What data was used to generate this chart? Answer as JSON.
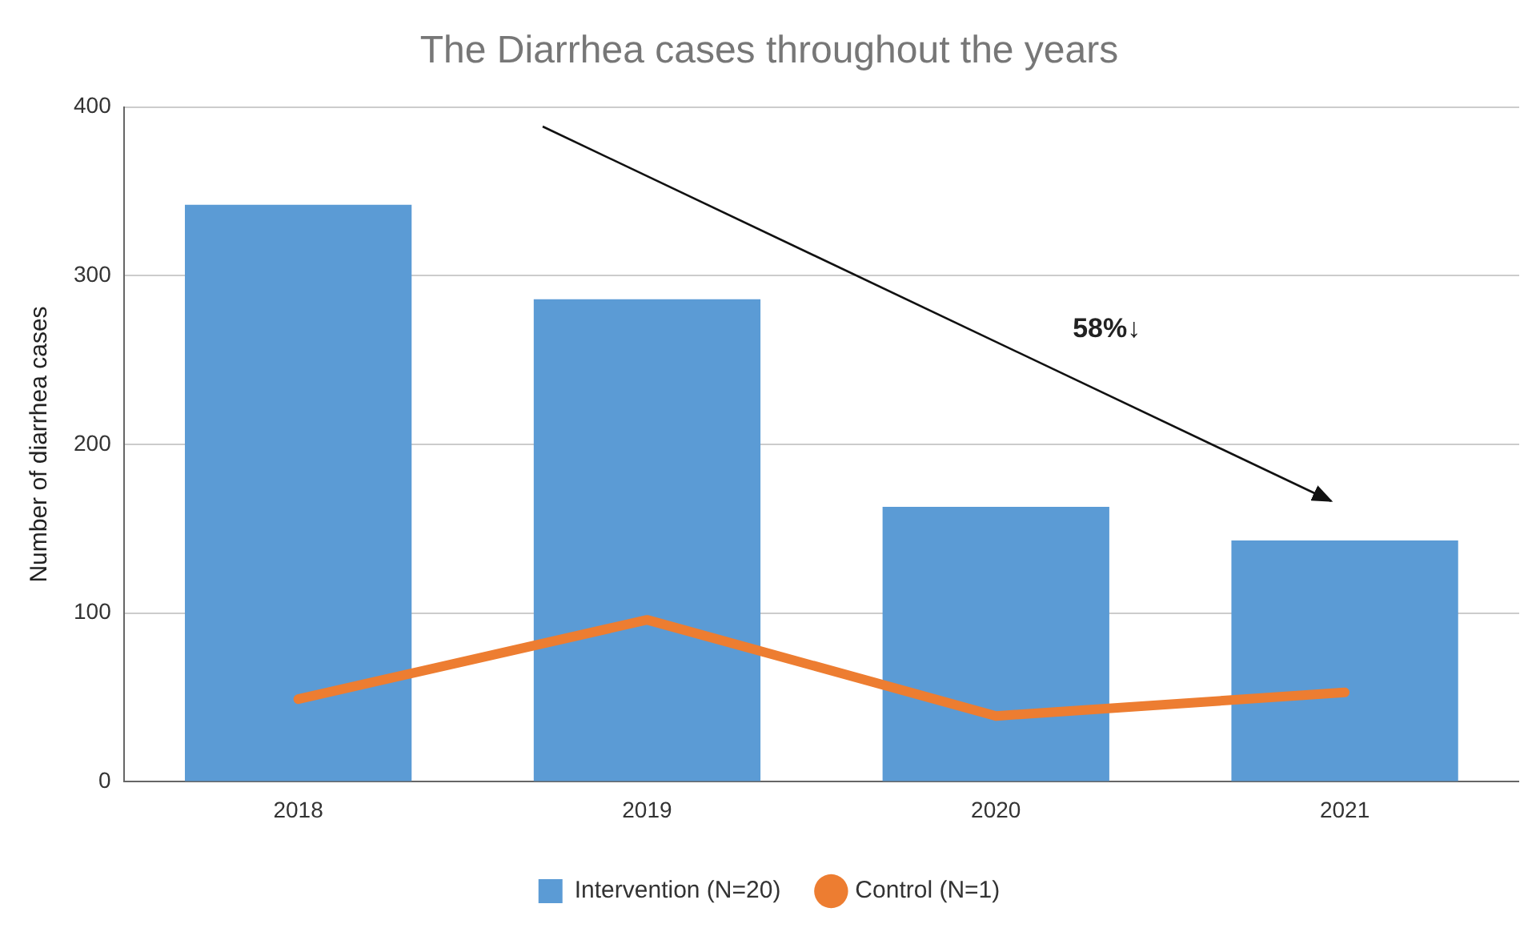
{
  "chart_data": {
    "type": "bar",
    "title": "The Diarrhea cases throughout the years",
    "ylabel": "Number of diarrhea cases",
    "categories": [
      "2018",
      "2019",
      "2020",
      "2021"
    ],
    "series": [
      {
        "name": "Intervention (N=20)",
        "color": "#5b9bd5",
        "values": [
          342,
          286,
          163,
          143
        ]
      },
      {
        "name": "Control (N=1)",
        "type": "line",
        "color": "#ed7d31",
        "values": [
          49,
          96,
          39,
          53
        ]
      }
    ],
    "ylim": [
      0,
      400
    ],
    "yticks": [
      0,
      100,
      200,
      300,
      400
    ],
    "grid": "y",
    "legend": "bottom",
    "marker": "none",
    "annotations": [
      "58%↓"
    ]
  }
}
